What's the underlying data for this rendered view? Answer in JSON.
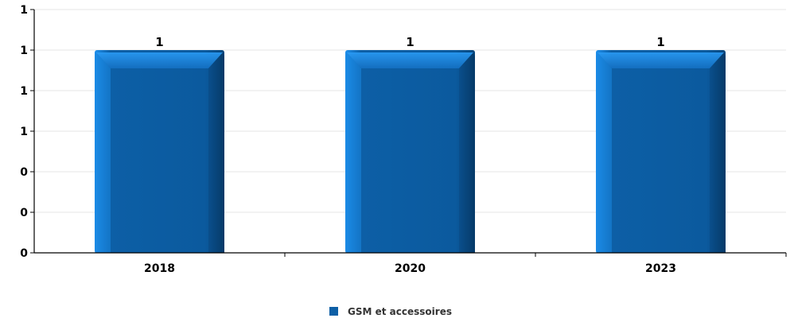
{
  "chart_data": {
    "type": "bar",
    "categories": [
      "2018",
      "2020",
      "2023"
    ],
    "series": [
      {
        "name": "GSM et accessoires",
        "values": [
          1,
          1,
          1
        ],
        "color": "#0d5fa6"
      }
    ],
    "data_labels": [
      "1",
      "1",
      "1"
    ],
    "y_tick_labels": [
      "0",
      "0",
      "0",
      "1",
      "1",
      "1",
      "1"
    ],
    "ylim": [
      0,
      1.2
    ],
    "grid": true,
    "legend_position": "bottom-center",
    "title": "",
    "xlabel": "",
    "ylabel": ""
  }
}
